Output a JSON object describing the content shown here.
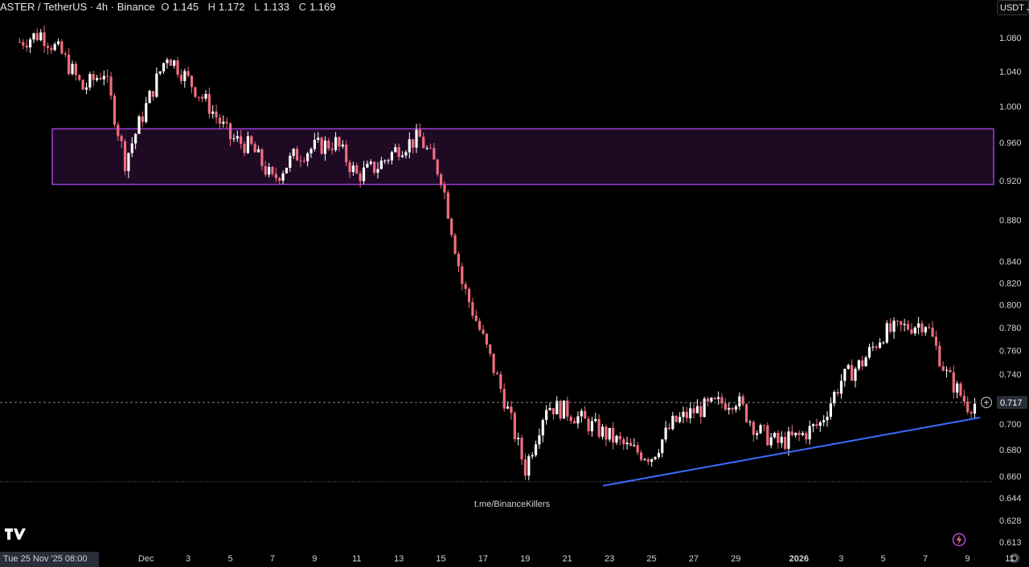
{
  "header": {
    "symbol": "ASTER / TetherUS · 4h · Binance",
    "open_label": "O",
    "open": "1.145",
    "high_label": "H",
    "high": "1.172",
    "low_label": "L",
    "low": "1.133",
    "close_label": "C",
    "close": "1.169"
  },
  "currency_selector": {
    "label": "USDT"
  },
  "cursor_date": "Tue 25 Nov '25   08:00",
  "watermark": "t.me/BinanceKillers",
  "colors": {
    "background": "#000000",
    "up": "#ffffff",
    "down": "#f06d7f",
    "zone_fill": "#1f0a24",
    "zone_border": "#9c3fd8",
    "trendline": "#3b6bff",
    "axis_text": "#d1d4dc"
  },
  "icons": [
    "tradingview-logo-icon",
    "lightning-icon",
    "settings-gear-icon",
    "add-plus-icon"
  ],
  "chart_data": {
    "type": "candlestick",
    "ylim": [
      0.613,
      1.1
    ],
    "y_scale": "log",
    "price_ticks": [
      "1.080",
      "1.040",
      "1.000",
      "0.960",
      "0.920",
      "0.880",
      "0.840",
      "0.820",
      "0.800",
      "0.780",
      "0.760",
      "0.740",
      "0.700",
      "0.680",
      "0.660",
      "0.644",
      "0.628",
      "0.613"
    ],
    "last_price": "0.717",
    "date_ticks": [
      {
        "label": "Dec",
        "day": 6
      },
      {
        "label": "3",
        "day": 8
      },
      {
        "label": "5",
        "day": 10
      },
      {
        "label": "7",
        "day": 12
      },
      {
        "label": "9",
        "day": 14
      },
      {
        "label": "11",
        "day": 16
      },
      {
        "label": "13",
        "day": 18
      },
      {
        "label": "15",
        "day": 20
      },
      {
        "label": "17",
        "day": 22
      },
      {
        "label": "19",
        "day": 24
      },
      {
        "label": "21",
        "day": 26
      },
      {
        "label": "23",
        "day": 28
      },
      {
        "label": "25",
        "day": 30
      },
      {
        "label": "27",
        "day": 32
      },
      {
        "label": "29",
        "day": 34
      },
      {
        "label": "2026",
        "day": 37
      },
      {
        "label": "3",
        "day": 39
      },
      {
        "label": "5",
        "day": 41
      },
      {
        "label": "7",
        "day": 43
      },
      {
        "label": "9",
        "day": 45
      },
      {
        "label": "11",
        "day": 47
      }
    ],
    "supply_zone": {
      "top": 0.975,
      "bottom": 0.916
    },
    "support_level": 0.656,
    "trendline": {
      "from": {
        "day": 27.7,
        "price": 0.653
      },
      "to": {
        "day": 45.6,
        "price": 0.705
      }
    },
    "path": [
      [
        0,
        1.075
      ],
      [
        1,
        1.085
      ],
      [
        2,
        1.06
      ],
      [
        3,
        1.02
      ],
      [
        4,
        1.04
      ],
      [
        5,
        0.94
      ],
      [
        6,
        1.0
      ],
      [
        7,
        1.06
      ],
      [
        8,
        1.03
      ],
      [
        9,
        1.0
      ],
      [
        10,
        0.965
      ],
      [
        11,
        0.955
      ],
      [
        12,
        0.92
      ],
      [
        13,
        0.945
      ],
      [
        14,
        0.955
      ],
      [
        15,
        0.96
      ],
      [
        16,
        0.925
      ],
      [
        17,
        0.935
      ],
      [
        18,
        0.955
      ],
      [
        19,
        0.965
      ],
      [
        20,
        0.925
      ],
      [
        21,
        0.82
      ],
      [
        22,
        0.77
      ],
      [
        23,
        0.72
      ],
      [
        24,
        0.665
      ],
      [
        25,
        0.715
      ],
      [
        26,
        0.71
      ],
      [
        27,
        0.7
      ],
      [
        28,
        0.69
      ],
      [
        29,
        0.68
      ],
      [
        30,
        0.675
      ],
      [
        31,
        0.7
      ],
      [
        32,
        0.71
      ],
      [
        33,
        0.715
      ],
      [
        34,
        0.72
      ],
      [
        35,
        0.695
      ],
      [
        36,
        0.685
      ],
      [
        37,
        0.69
      ],
      [
        38,
        0.7
      ],
      [
        39,
        0.735
      ],
      [
        40,
        0.75
      ],
      [
        41,
        0.775
      ],
      [
        42,
        0.78
      ],
      [
        43,
        0.785
      ],
      [
        44,
        0.74
      ],
      [
        45,
        0.715
      ],
      [
        45.5,
        0.717
      ]
    ]
  }
}
